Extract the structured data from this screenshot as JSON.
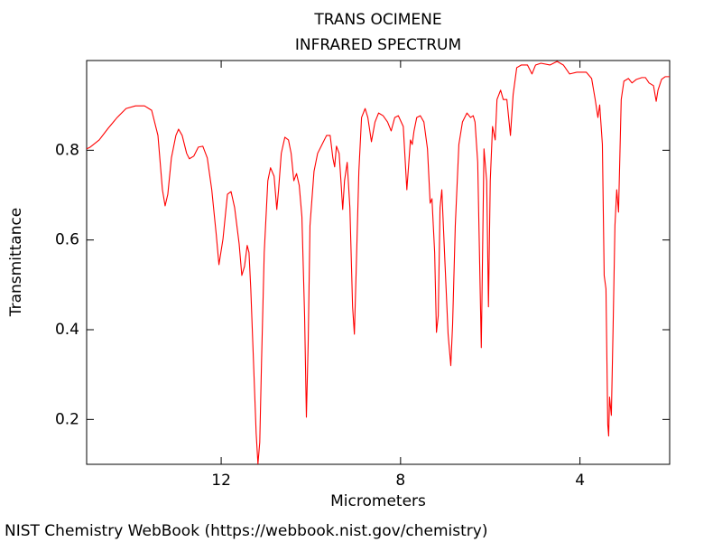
{
  "chart_data": {
    "type": "line",
    "title": "TRANS OCIMENE",
    "subtitle": "INFRARED SPECTRUM",
    "x_label": "Micrometers",
    "y_label": "Transmittance",
    "color": "#ff0000",
    "xlim": [
      15,
      2
    ],
    "ylim": [
      0.1,
      1.0
    ],
    "xticks": [
      12,
      8,
      4
    ],
    "yticks": [
      0.2,
      0.4,
      0.6,
      0.8
    ],
    "x": [
      15.0,
      14.92,
      14.72,
      14.52,
      14.32,
      14.12,
      13.91,
      13.71,
      13.55,
      13.41,
      13.31,
      13.25,
      13.19,
      13.11,
      13.01,
      12.95,
      12.87,
      12.77,
      12.71,
      12.61,
      12.51,
      12.41,
      12.31,
      12.21,
      12.11,
      12.05,
      11.96,
      11.86,
      11.78,
      11.7,
      11.6,
      11.54,
      11.48,
      11.42,
      11.38,
      11.34,
      11.28,
      11.22,
      11.18,
      11.14,
      11.1,
      11.04,
      10.96,
      10.9,
      10.82,
      10.76,
      10.72,
      10.66,
      10.58,
      10.5,
      10.44,
      10.38,
      10.32,
      10.26,
      10.2,
      10.14,
      10.1,
      10.06,
      10.02,
      9.93,
      9.85,
      9.75,
      9.65,
      9.57,
      9.51,
      9.47,
      9.43,
      9.37,
      9.33,
      9.29,
      9.25,
      9.19,
      9.13,
      9.07,
      9.03,
      8.99,
      8.93,
      8.87,
      8.79,
      8.73,
      8.65,
      8.57,
      8.49,
      8.39,
      8.29,
      8.21,
      8.13,
      8.05,
      7.94,
      7.86,
      7.78,
      7.74,
      7.7,
      7.64,
      7.56,
      7.48,
      7.4,
      7.34,
      7.3,
      7.24,
      7.2,
      7.16,
      7.12,
      7.08,
      7.02,
      6.94,
      6.88,
      6.84,
      6.78,
      6.7,
      6.62,
      6.52,
      6.44,
      6.38,
      6.34,
      6.28,
      6.2,
      6.14,
      6.08,
      6.04,
      6.0,
      5.95,
      5.89,
      5.85,
      5.77,
      5.71,
      5.63,
      5.59,
      5.55,
      5.49,
      5.41,
      5.31,
      5.17,
      5.07,
      4.99,
      4.87,
      4.67,
      4.51,
      4.37,
      4.23,
      4.07,
      3.86,
      3.74,
      3.66,
      3.6,
      3.56,
      3.5,
      3.46,
      3.42,
      3.38,
      3.36,
      3.34,
      3.32,
      3.3,
      3.26,
      3.22,
      3.18,
      3.14,
      3.08,
      3.02,
      2.92,
      2.84,
      2.74,
      2.62,
      2.54,
      2.46,
      2.36,
      2.3,
      2.26,
      2.18,
      2.1,
      2.0
    ],
    "values": [
      0.803,
      0.807,
      0.823,
      0.849,
      0.873,
      0.893,
      0.899,
      0.899,
      0.889,
      0.833,
      0.712,
      0.676,
      0.702,
      0.783,
      0.833,
      0.847,
      0.833,
      0.793,
      0.781,
      0.787,
      0.807,
      0.809,
      0.783,
      0.712,
      0.612,
      0.545,
      0.602,
      0.702,
      0.708,
      0.672,
      0.592,
      0.521,
      0.541,
      0.588,
      0.572,
      0.491,
      0.33,
      0.169,
      0.101,
      0.149,
      0.33,
      0.572,
      0.732,
      0.761,
      0.742,
      0.668,
      0.712,
      0.793,
      0.829,
      0.823,
      0.793,
      0.732,
      0.748,
      0.722,
      0.652,
      0.431,
      0.205,
      0.37,
      0.632,
      0.753,
      0.793,
      0.813,
      0.833,
      0.833,
      0.783,
      0.763,
      0.809,
      0.793,
      0.732,
      0.668,
      0.732,
      0.773,
      0.672,
      0.451,
      0.39,
      0.531,
      0.753,
      0.873,
      0.893,
      0.873,
      0.819,
      0.863,
      0.883,
      0.877,
      0.863,
      0.843,
      0.873,
      0.877,
      0.853,
      0.712,
      0.823,
      0.813,
      0.843,
      0.873,
      0.877,
      0.863,
      0.803,
      0.682,
      0.692,
      0.572,
      0.394,
      0.431,
      0.672,
      0.712,
      0.572,
      0.39,
      0.32,
      0.411,
      0.632,
      0.813,
      0.863,
      0.883,
      0.873,
      0.877,
      0.863,
      0.773,
      0.36,
      0.803,
      0.732,
      0.451,
      0.732,
      0.853,
      0.823,
      0.913,
      0.934,
      0.913,
      0.913,
      0.873,
      0.833,
      0.924,
      0.984,
      0.99,
      0.99,
      0.97,
      0.99,
      0.994,
      0.99,
      0.998,
      0.99,
      0.97,
      0.974,
      0.974,
      0.96,
      0.913,
      0.873,
      0.901,
      0.813,
      0.521,
      0.491,
      0.189,
      0.163,
      0.25,
      0.229,
      0.209,
      0.411,
      0.632,
      0.712,
      0.662,
      0.913,
      0.954,
      0.96,
      0.95,
      0.958,
      0.962,
      0.962,
      0.95,
      0.944,
      0.909,
      0.934,
      0.958,
      0.964,
      0.964
    ]
  },
  "footer": "NIST Chemistry WebBook (https://webbook.nist.gov/chemistry)"
}
